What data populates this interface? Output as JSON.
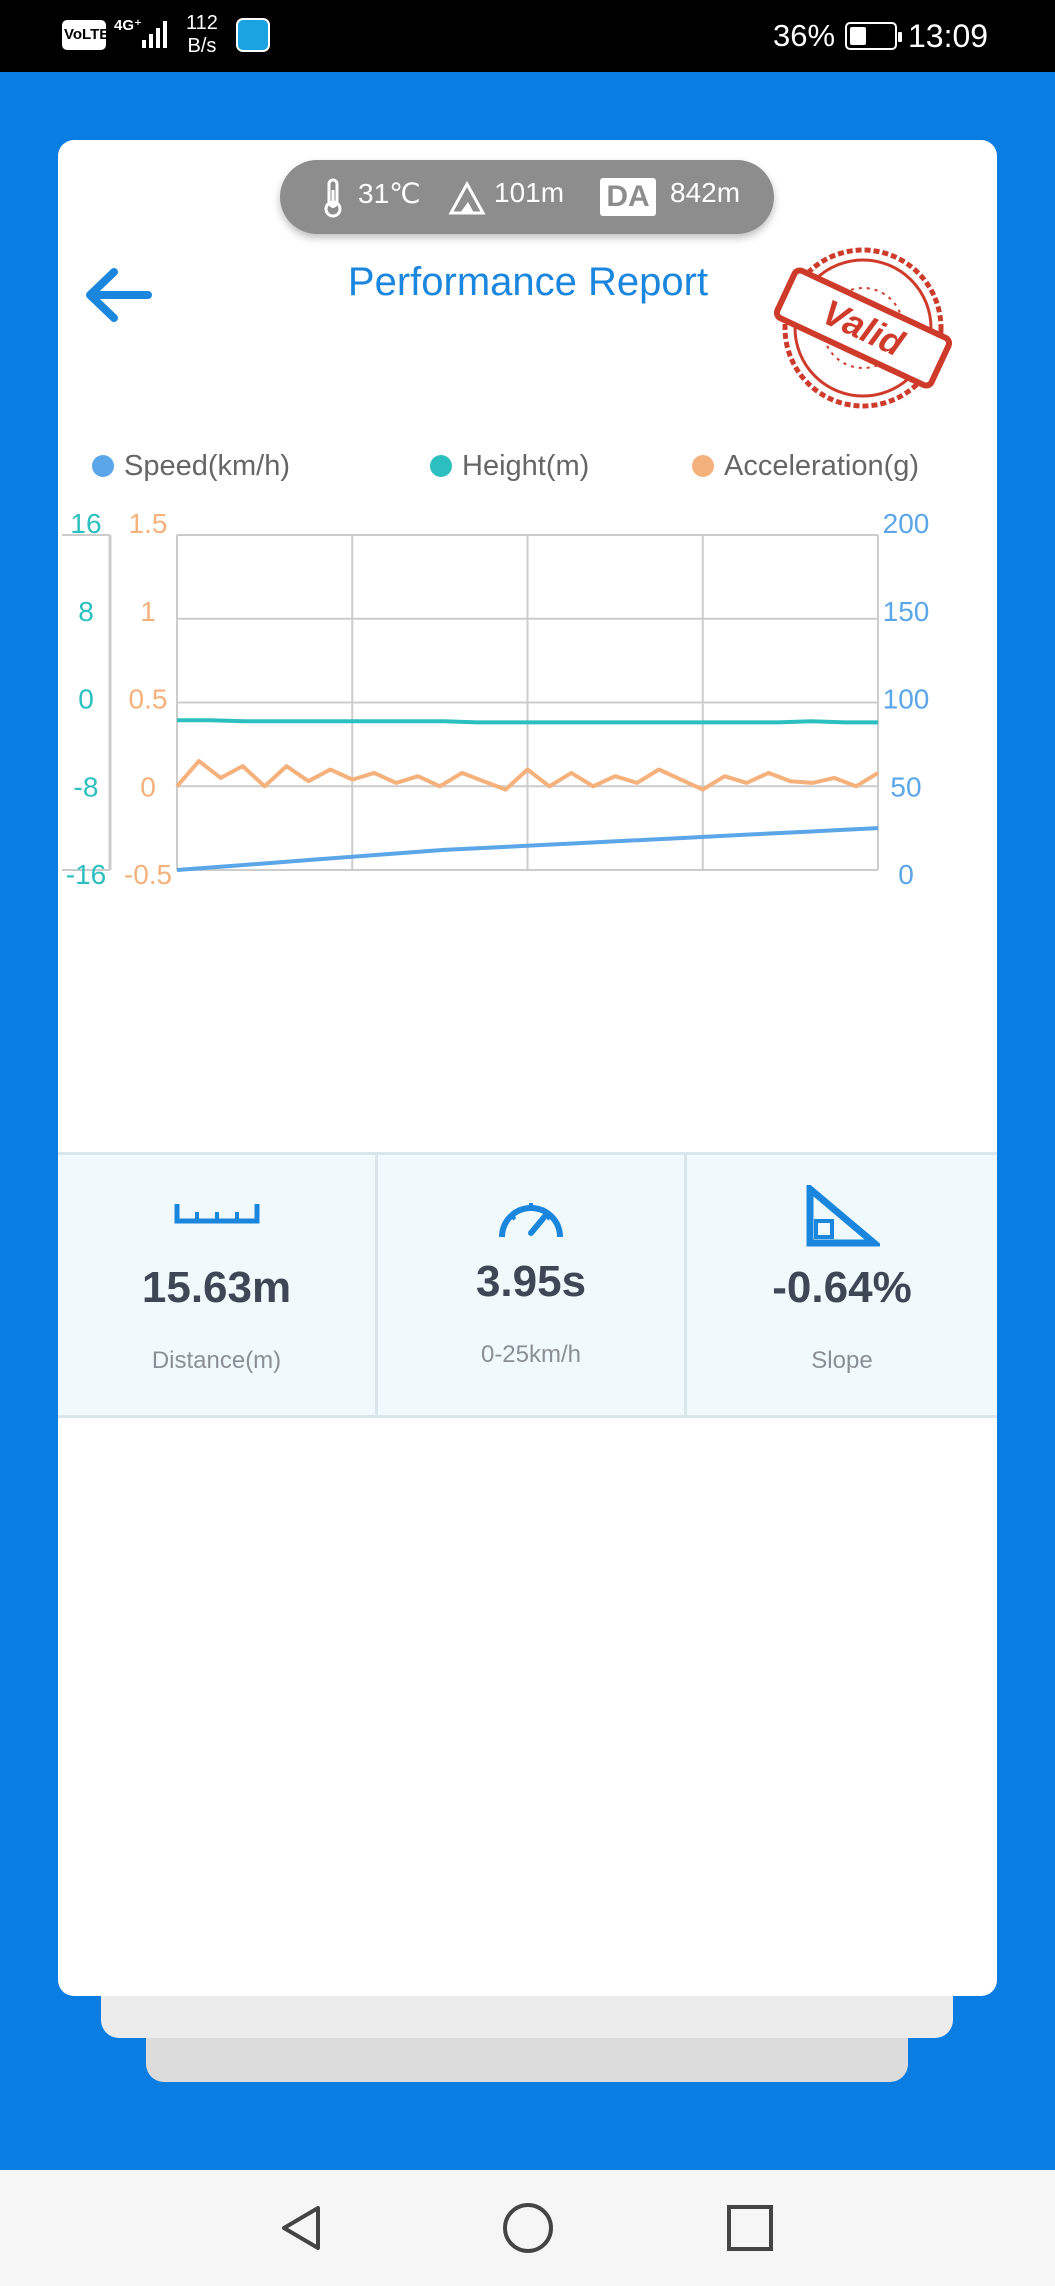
{
  "status_bar": {
    "volte": "VoLTE",
    "network": "4G⁺",
    "speed_value": "112",
    "speed_unit": "B/s",
    "battery_percent": "36%",
    "time": "13:09"
  },
  "environment": {
    "temperature": "31℃",
    "altitude": "101m",
    "da_label": "DA",
    "density_altitude": "842m"
  },
  "header": {
    "title": "Performance Report",
    "stamp_text": "Valid",
    "back_icon": "arrow-left-icon"
  },
  "legend": [
    {
      "label": "Speed(km/h)",
      "color": "#5ba6e8"
    },
    {
      "label": "Height(m)",
      "color": "#2cbfbf"
    },
    {
      "label": "Acceleration(g)",
      "color": "#f5b17b"
    }
  ],
  "chart_data": {
    "type": "line",
    "x_gridlines": 5,
    "grid": true,
    "axes": {
      "height_left": {
        "ticks": [
          "16",
          "8",
          "0",
          "-8",
          "-16"
        ],
        "range": [
          -16,
          16
        ],
        "color": "#2cbfbf"
      },
      "acceleration_left": {
        "ticks": [
          "1.5",
          "1",
          "0.5",
          "0",
          "-0.5"
        ],
        "range": [
          -0.5,
          1.5
        ],
        "color": "#f5b17b"
      },
      "speed_right": {
        "ticks": [
          "200",
          "150",
          "100",
          "50",
          "0"
        ],
        "range": [
          0,
          200
        ],
        "color": "#5ba6e8"
      }
    },
    "series": [
      {
        "name": "Speed(km/h)",
        "axis": "speed_right",
        "color": "#5ba6e8",
        "values": [
          0,
          1.5,
          3,
          4.5,
          6,
          7.5,
          9,
          10.5,
          12,
          13,
          14,
          15,
          16,
          17,
          18,
          19,
          20,
          21,
          22,
          23,
          24,
          25
        ]
      },
      {
        "name": "Height(m)",
        "axis": "height_left",
        "color": "#2cbfbf",
        "values": [
          -1.7,
          -1.7,
          -1.8,
          -1.8,
          -1.8,
          -1.8,
          -1.8,
          -1.8,
          -1.8,
          -1.9,
          -1.9,
          -1.9,
          -1.9,
          -1.9,
          -1.9,
          -1.9,
          -1.9,
          -1.9,
          -1.9,
          -1.8,
          -1.9,
          -1.9
        ]
      },
      {
        "name": "Acceleration(g)",
        "axis": "acceleration_left",
        "color": "#f5b17b",
        "values": [
          0,
          0.15,
          0.05,
          0.12,
          0.0,
          0.12,
          0.03,
          0.1,
          0.04,
          0.08,
          0.02,
          0.06,
          0.0,
          0.08,
          0.03,
          -0.02,
          0.1,
          0.0,
          0.08,
          0.0,
          0.06,
          0.02,
          0.1,
          0.04,
          -0.02,
          0.06,
          0.02,
          0.08,
          0.03,
          0.02,
          0.05,
          0.0,
          0.08
        ]
      }
    ]
  },
  "stats": [
    {
      "icon": "ruler-icon",
      "value": "15.63m",
      "label": "Distance(m)"
    },
    {
      "icon": "speedometer-icon",
      "value": "3.95s",
      "label": "0-25km/h"
    },
    {
      "icon": "slope-icon",
      "value": "-0.64%",
      "label": "Slope"
    }
  ],
  "nav": {
    "back_icon": "triangle-back-icon",
    "home_icon": "circle-home-icon",
    "recents_icon": "square-recents-icon"
  }
}
